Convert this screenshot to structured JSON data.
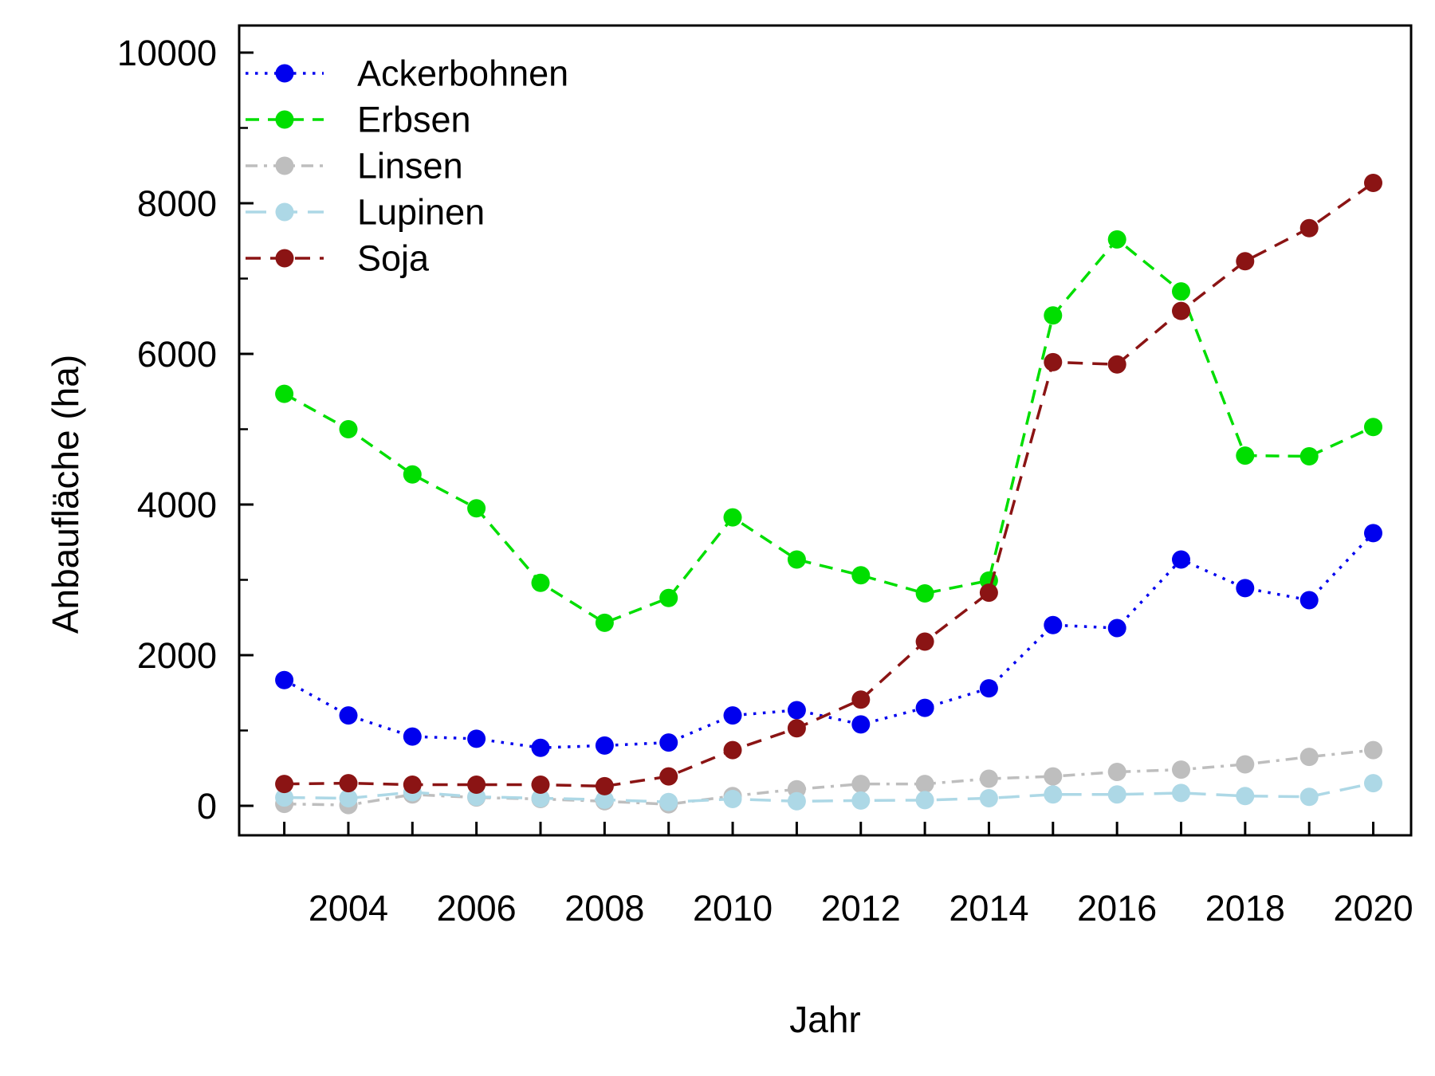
{
  "figure": {
    "xlabel": "Jahr",
    "ylabel": "Anbaufläche (ha)"
  },
  "chart_data": {
    "type": "line",
    "title": "",
    "xlabel": "Jahr",
    "ylabel": "Anbaufläche (ha)",
    "x": [
      2003,
      2004,
      2005,
      2006,
      2007,
      2008,
      2009,
      2010,
      2011,
      2012,
      2013,
      2014,
      2015,
      2016,
      2017,
      2018,
      2019,
      2020
    ],
    "x_tick_years": [
      2003,
      2004,
      2005,
      2006,
      2007,
      2008,
      2009,
      2010,
      2011,
      2012,
      2013,
      2014,
      2015,
      2016,
      2017,
      2018,
      2019,
      2020
    ],
    "x_label_years": [
      "2004",
      "2006",
      "2008",
      "2010",
      "2012",
      "2014",
      "2016",
      "2018",
      "2020"
    ],
    "y_major_ticks": [
      0,
      2000,
      4000,
      6000,
      8000,
      10000
    ],
    "y_major_labels": [
      "0",
      "2000",
      "4000",
      "6000",
      "8000",
      "10000"
    ],
    "y_minor_ticks": [
      1000,
      3000,
      5000,
      7000,
      9000
    ],
    "xlim": [
      2002.3,
      2020.6
    ],
    "ylim": [
      -390,
      10360
    ],
    "grid": "off",
    "legend_position": "top-left",
    "series": [
      {
        "name": "Ackerbohnen",
        "color": "#0000EE",
        "linestyle": "dotted",
        "values": [
          1670,
          1200,
          920,
          890,
          770,
          800,
          840,
          1200,
          1270,
          1080,
          1300,
          1560,
          2400,
          2360,
          3270,
          2890,
          2730,
          3620
        ]
      },
      {
        "name": "Erbsen",
        "color": "#00DE00",
        "linestyle": "dashed",
        "values": [
          5470,
          5000,
          4400,
          3950,
          2960,
          2430,
          2760,
          3830,
          3270,
          3060,
          2820,
          2990,
          6510,
          7520,
          6830,
          4650,
          4640,
          5030
        ]
      },
      {
        "name": "Linsen",
        "color": "#BEBEBE",
        "linestyle": "dashdot",
        "values": [
          25,
          10,
          150,
          110,
          90,
          60,
          20,
          130,
          220,
          290,
          290,
          360,
          390,
          450,
          480,
          550,
          650,
          740
        ]
      },
      {
        "name": "Lupinen",
        "color": "#ADD8E6",
        "linestyle": "longdash",
        "values": [
          110,
          100,
          180,
          120,
          100,
          80,
          50,
          90,
          60,
          70,
          75,
          100,
          150,
          150,
          170,
          130,
          120,
          300
        ]
      },
      {
        "name": "Soja",
        "color": "#8B1414",
        "linestyle": "dash",
        "values": [
          290,
          300,
          280,
          280,
          280,
          260,
          390,
          740,
          1030,
          1410,
          2180,
          2830,
          5890,
          5860,
          6570,
          7230,
          7670,
          8270
        ]
      }
    ]
  }
}
